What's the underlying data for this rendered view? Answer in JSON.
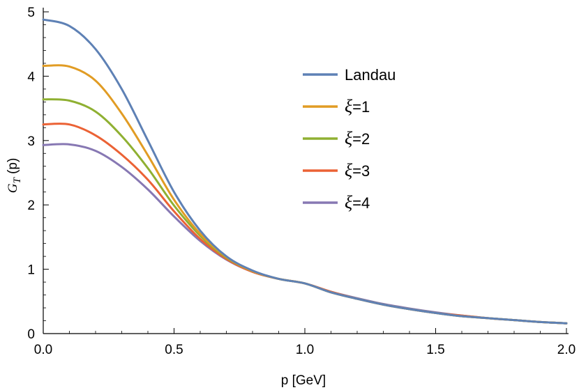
{
  "chart_data": {
    "type": "line",
    "xlabel": "p [GeV]",
    "ylabel_main": "G",
    "ylabel_sub": "T",
    "ylabel_tail": " (p)",
    "xlim": [
      0.0,
      2.0
    ],
    "ylim": [
      0,
      5
    ],
    "xticks": [
      0.0,
      0.5,
      1.0,
      1.5,
      2.0
    ],
    "xtick_labels": [
      "0.0",
      "0.5",
      "1.0",
      "1.5",
      "2.0"
    ],
    "yticks": [
      0,
      1,
      2,
      3,
      4,
      5
    ],
    "ytick_labels": [
      "0",
      "1",
      "2",
      "3",
      "4",
      "5"
    ],
    "grid": false,
    "legend_position": "upper-right",
    "x": [
      0.0,
      0.1,
      0.2,
      0.3,
      0.4,
      0.5,
      0.6,
      0.7,
      0.8,
      0.9,
      1.0,
      1.1,
      1.2,
      1.3,
      1.4,
      1.5,
      1.6,
      1.7,
      1.8,
      1.9,
      2.0
    ],
    "series": [
      {
        "name": "Landau",
        "legend_prefix": "",
        "legend_text": "Landau",
        "color": "#5E81B5",
        "values": [
          4.88,
          4.78,
          4.42,
          3.8,
          3.0,
          2.2,
          1.6,
          1.2,
          0.98,
          0.85,
          0.78,
          0.64,
          0.54,
          0.45,
          0.38,
          0.32,
          0.27,
          0.24,
          0.21,
          0.18,
          0.16
        ]
      },
      {
        "name": "ξ=1",
        "legend_prefix": "ξ",
        "legend_text": "=1",
        "color": "#E19C24",
        "values": [
          4.16,
          4.15,
          3.93,
          3.42,
          2.77,
          2.08,
          1.55,
          1.19,
          0.97,
          0.85,
          0.78,
          0.64,
          0.54,
          0.45,
          0.38,
          0.32,
          0.27,
          0.24,
          0.21,
          0.18,
          0.16
        ]
      },
      {
        "name": "ξ=2",
        "legend_prefix": "ξ",
        "legend_text": "=2",
        "color": "#8FB032",
        "values": [
          3.64,
          3.62,
          3.45,
          3.07,
          2.57,
          1.99,
          1.52,
          1.18,
          0.97,
          0.85,
          0.78,
          0.64,
          0.54,
          0.45,
          0.38,
          0.32,
          0.27,
          0.24,
          0.21,
          0.18,
          0.16
        ]
      },
      {
        "name": "ξ=3",
        "legend_prefix": "ξ",
        "legend_text": "=3",
        "color": "#EB6235",
        "values": [
          3.25,
          3.25,
          3.08,
          2.78,
          2.39,
          1.9,
          1.47,
          1.16,
          0.96,
          0.85,
          0.78,
          0.65,
          0.54,
          0.45,
          0.38,
          0.32,
          0.28,
          0.24,
          0.21,
          0.18,
          0.16
        ]
      },
      {
        "name": "ξ=4",
        "legend_prefix": "ξ",
        "legend_text": "=4",
        "color": "#8778B3",
        "values": [
          2.93,
          2.94,
          2.84,
          2.59,
          2.24,
          1.82,
          1.44,
          1.15,
          0.96,
          0.85,
          0.78,
          0.65,
          0.55,
          0.46,
          0.39,
          0.33,
          0.28,
          0.24,
          0.21,
          0.18,
          0.16
        ]
      }
    ]
  }
}
